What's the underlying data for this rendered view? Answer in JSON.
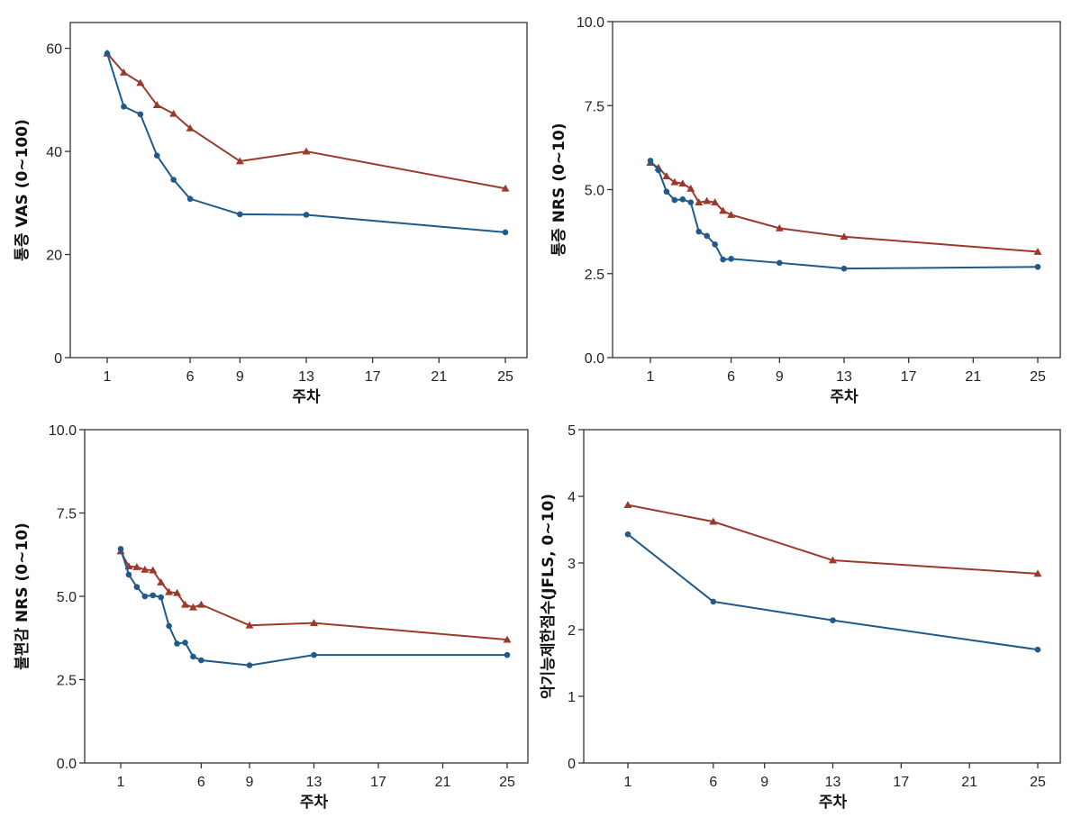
{
  "figure": {
    "colors": {
      "series_a": "#1f5a8a",
      "series_b": "#9b3a2c"
    }
  },
  "chart_data": [
    {
      "id": "vas",
      "type": "line",
      "title": "",
      "xlabel": "주차",
      "ylabel": "통증 VAS (0~100)",
      "xlim": [
        1,
        25
      ],
      "ylim": [
        0,
        65
      ],
      "xticks": [
        1,
        6,
        9,
        13,
        17,
        21,
        25
      ],
      "yticks": [
        0,
        20,
        40,
        60
      ],
      "ytick_labels": [
        "0",
        "20",
        "40",
        "60"
      ],
      "grid": false,
      "legend": "none",
      "series": [
        {
          "name": "series_b",
          "marker": "triangle",
          "color": "#9b3a2c",
          "x": [
            1,
            2,
            3,
            4,
            5,
            6,
            9,
            13,
            25
          ],
          "y": [
            59.0,
            55.3,
            53.3,
            49.0,
            47.3,
            44.5,
            38.1,
            40.0,
            32.8
          ]
        },
        {
          "name": "series_a",
          "marker": "circle",
          "color": "#1f5a8a",
          "x": [
            1,
            2,
            3,
            4,
            5,
            6,
            9,
            13,
            25
          ],
          "y": [
            59.0,
            48.7,
            47.2,
            39.2,
            34.5,
            30.8,
            27.8,
            27.7,
            24.3
          ]
        }
      ]
    },
    {
      "id": "nrs_pain",
      "type": "line",
      "title": "",
      "xlabel": "주차",
      "ylabel": "통증 NRS (0~10)",
      "xlim": [
        1,
        25
      ],
      "ylim": [
        0,
        10
      ],
      "xticks": [
        1,
        6,
        9,
        13,
        17,
        21,
        25
      ],
      "yticks": [
        0,
        2.5,
        5,
        7.5,
        10
      ],
      "ytick_labels": [
        "0.0",
        "2.5",
        "5.0",
        "7.5",
        "10.0"
      ],
      "grid": false,
      "legend": "none",
      "series": [
        {
          "name": "series_b",
          "marker": "triangle",
          "color": "#9b3a2c",
          "x": [
            1,
            1.5,
            2,
            2.5,
            3,
            3.5,
            4,
            4.5,
            5,
            5.5,
            6,
            9,
            13,
            25
          ],
          "y": [
            5.8,
            5.65,
            5.4,
            5.22,
            5.18,
            5.03,
            4.62,
            4.66,
            4.62,
            4.37,
            4.25,
            3.85,
            3.6,
            3.15
          ]
        },
        {
          "name": "series_a",
          "marker": "circle",
          "color": "#1f5a8a",
          "x": [
            1,
            1.5,
            2,
            2.5,
            3,
            3.5,
            4,
            4.5,
            5,
            5.5,
            6,
            9,
            13,
            25
          ],
          "y": [
            5.86,
            5.58,
            4.94,
            4.69,
            4.71,
            4.62,
            3.75,
            3.62,
            3.37,
            2.92,
            2.94,
            2.82,
            2.65,
            2.7
          ]
        }
      ]
    },
    {
      "id": "nrs_discomfort",
      "type": "line",
      "title": "",
      "xlabel": "주차",
      "ylabel": "불편감 NRS (0~10)",
      "xlim": [
        1,
        25
      ],
      "ylim": [
        0,
        10
      ],
      "xticks": [
        1,
        6,
        9,
        13,
        17,
        21,
        25
      ],
      "yticks": [
        0,
        2.5,
        5,
        7.5,
        10
      ],
      "ytick_labels": [
        "0.0",
        "2.5",
        "5.0",
        "7.5",
        "10.0"
      ],
      "grid": false,
      "legend": "none",
      "series": [
        {
          "name": "series_b",
          "marker": "triangle",
          "color": "#9b3a2c",
          "x": [
            1,
            1.5,
            2,
            2.5,
            3,
            3.5,
            4,
            4.5,
            5,
            5.5,
            6,
            9,
            13,
            25
          ],
          "y": [
            6.35,
            5.9,
            5.88,
            5.8,
            5.78,
            5.42,
            5.13,
            5.1,
            4.75,
            4.67,
            4.75,
            4.13,
            4.2,
            3.7
          ]
        },
        {
          "name": "series_a",
          "marker": "circle",
          "color": "#1f5a8a",
          "x": [
            1,
            1.5,
            2,
            2.5,
            3,
            3.5,
            4,
            4.5,
            5,
            5.5,
            6,
            9,
            13,
            25
          ],
          "y": [
            6.42,
            5.65,
            5.28,
            5.0,
            5.03,
            4.97,
            4.11,
            3.58,
            3.61,
            3.19,
            3.08,
            2.93,
            3.24,
            3.24
          ]
        }
      ]
    },
    {
      "id": "jfls",
      "type": "line",
      "title": "",
      "xlabel": "주차",
      "ylabel": "악기능제한점수(JFLS, 0~10)",
      "xlim": [
        1,
        25
      ],
      "ylim": [
        0,
        5
      ],
      "xticks": [
        1,
        6,
        9,
        13,
        17,
        21,
        25
      ],
      "yticks": [
        0,
        1,
        2,
        3,
        4,
        5
      ],
      "ytick_labels": [
        "0",
        "1",
        "2",
        "3",
        "4",
        "5"
      ],
      "grid": false,
      "legend": "none",
      "series": [
        {
          "name": "series_b",
          "marker": "triangle",
          "color": "#9b3a2c",
          "x": [
            1,
            6,
            13,
            25
          ],
          "y": [
            3.87,
            3.62,
            3.04,
            2.84
          ]
        },
        {
          "name": "series_a",
          "marker": "circle",
          "color": "#1f5a8a",
          "x": [
            1,
            6,
            13,
            25
          ],
          "y": [
            3.43,
            2.42,
            2.14,
            1.7
          ]
        }
      ]
    }
  ]
}
